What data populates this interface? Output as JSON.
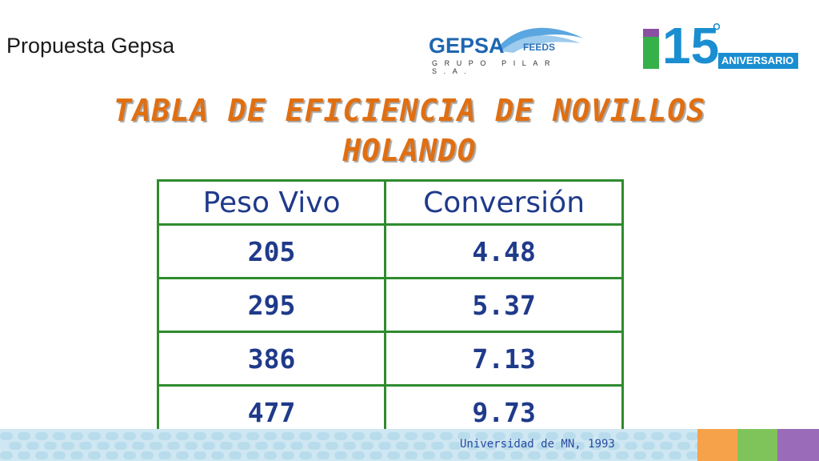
{
  "header": {
    "label": "Propuesta Gepsa",
    "gepsa_logo": {
      "word": "GEPSA",
      "feeds": "FEEDS",
      "subtitle": "GRUPO PILAR S.A."
    },
    "anniversary_logo": {
      "number": "15",
      "degree": "°",
      "text": "ANIVERSARIO"
    }
  },
  "title": {
    "line1": "TABLA DE EFICIENCIA DE NOVILLOS",
    "line2": "HOLANDO"
  },
  "table": {
    "headers": [
      "Peso Vivo",
      "Conversión"
    ],
    "rows": [
      [
        "205",
        "4.48"
      ],
      [
        "295",
        "5.37"
      ],
      [
        "386",
        "7.13"
      ],
      [
        "477",
        "9.73"
      ]
    ]
  },
  "footer": {
    "source": "Universidad de MN, 1993"
  },
  "colors": {
    "title": "#e06f12",
    "table_border": "#2e8b2e",
    "table_text": "#1f3a8a"
  }
}
